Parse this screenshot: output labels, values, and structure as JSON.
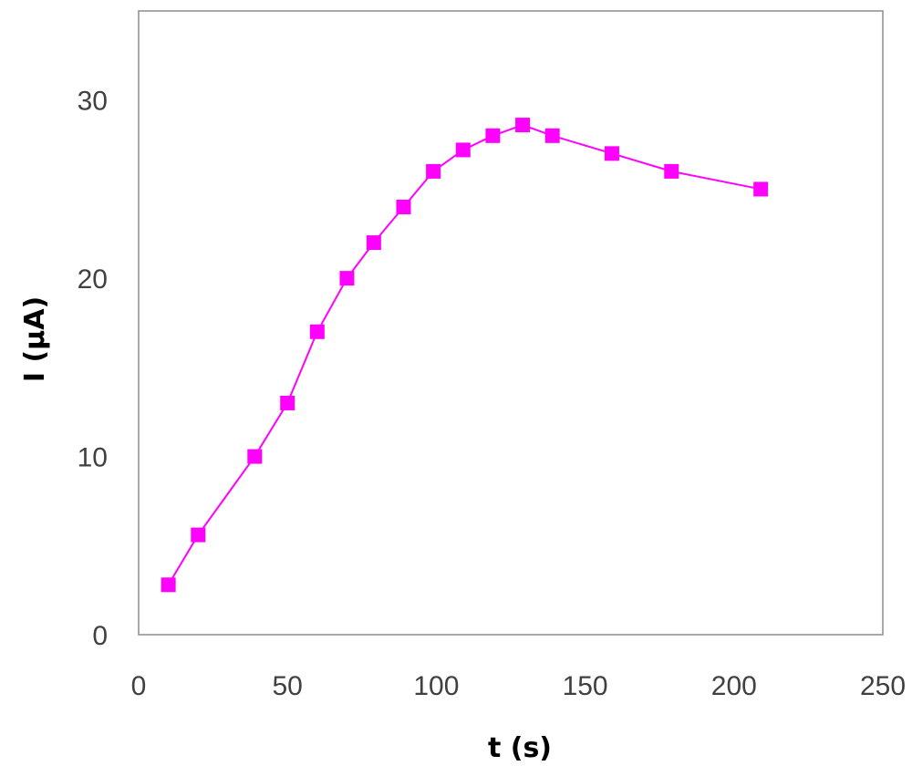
{
  "chart_data": {
    "type": "scatter",
    "title": "",
    "xlabel": "t (s)",
    "ylabel": "I (μA)",
    "xlim": [
      0,
      250
    ],
    "ylim": [
      0,
      35
    ],
    "xticks": [
      0,
      50,
      100,
      150,
      200,
      250
    ],
    "yticks": [
      0,
      10,
      20,
      30
    ],
    "grid": false,
    "line_style": "lines with square markers",
    "series": [
      {
        "color": "#ff00ff",
        "points": [
          {
            "x": 10,
            "y": 2.8
          },
          {
            "x": 20,
            "y": 5.6
          },
          {
            "x": 39,
            "y": 10
          },
          {
            "x": 50,
            "y": 13
          },
          {
            "x": 60,
            "y": 17
          },
          {
            "x": 70,
            "y": 20
          },
          {
            "x": 79,
            "y": 22
          },
          {
            "x": 89,
            "y": 24
          },
          {
            "x": 99,
            "y": 26
          },
          {
            "x": 109,
            "y": 27.2
          },
          {
            "x": 119,
            "y": 28
          },
          {
            "x": 129,
            "y": 28.6
          },
          {
            "x": 139,
            "y": 28
          },
          {
            "x": 159,
            "y": 27
          },
          {
            "x": 179,
            "y": 26
          },
          {
            "x": 209,
            "y": 25
          }
        ]
      }
    ]
  }
}
